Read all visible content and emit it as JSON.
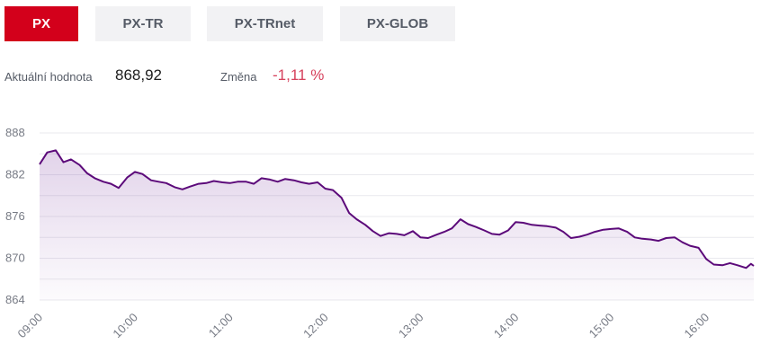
{
  "tabs": [
    {
      "label": "PX",
      "active": true
    },
    {
      "label": "PX-TR",
      "active": false
    },
    {
      "label": "PX-TRnet",
      "active": false
    },
    {
      "label": "PX-GLOB",
      "active": false
    }
  ],
  "info": {
    "current_label": "Aktuální hodnota",
    "current_value": "868,92",
    "change_label": "Změna",
    "change_value": "-1,11 %"
  },
  "colors": {
    "accent": "#d3001b",
    "line": "#5c0a7a",
    "change_negative": "#d6415c"
  },
  "chart_data": {
    "type": "area",
    "x_unit": "time (hours, 9 = 09:00)",
    "y_ticks": [
      "888",
      "882",
      "876",
      "870",
      "864"
    ],
    "ylim": [
      864,
      888
    ],
    "x_ticks": [
      "09:00",
      "10:00",
      "11:00",
      "12:00",
      "13:00",
      "14:00",
      "15:00",
      "16:00"
    ],
    "xlim": [
      9.0,
      16.5
    ],
    "grid": true,
    "series": [
      {
        "x": [
          9.0,
          9.08,
          9.17,
          9.25,
          9.33,
          9.42,
          9.5,
          9.58,
          9.67,
          9.75,
          9.83,
          9.92,
          10.0,
          10.08,
          10.17,
          10.25,
          10.33,
          10.42,
          10.5,
          10.58,
          10.67,
          10.75,
          10.83,
          10.92,
          11.0,
          11.08,
          11.17,
          11.25,
          11.33,
          11.42,
          11.5,
          11.58,
          11.67,
          11.75,
          11.83,
          11.92,
          12.0,
          12.08,
          12.17,
          12.25,
          12.33,
          12.42,
          12.5,
          12.58,
          12.67,
          12.75,
          12.83,
          12.92,
          13.0,
          13.08,
          13.17,
          13.25,
          13.33,
          13.42,
          13.5,
          13.58,
          13.67,
          13.75,
          13.83,
          13.92,
          14.0,
          14.08,
          14.17,
          14.25,
          14.33,
          14.42,
          14.5,
          14.58,
          14.67,
          14.75,
          14.83,
          14.92,
          15.0,
          15.08,
          15.17,
          15.25,
          15.33,
          15.42,
          15.5,
          15.58,
          15.67,
          15.75,
          15.83,
          15.92,
          16.0,
          16.08,
          16.17,
          16.25,
          16.33,
          16.42,
          16.47,
          16.5
        ],
        "y": [
          883.5,
          885.2,
          885.5,
          883.8,
          884.2,
          883.4,
          882.2,
          881.5,
          881.0,
          880.7,
          880.1,
          881.6,
          882.4,
          882.1,
          881.2,
          881.0,
          880.8,
          880.2,
          879.9,
          880.3,
          880.7,
          880.8,
          881.1,
          880.9,
          880.8,
          881.0,
          881.0,
          880.7,
          881.5,
          881.3,
          881.0,
          881.4,
          881.2,
          880.9,
          880.7,
          880.9,
          880.0,
          879.8,
          878.7,
          876.5,
          875.6,
          874.8,
          873.9,
          873.2,
          873.6,
          873.5,
          873.3,
          873.9,
          873.0,
          872.9,
          873.4,
          873.8,
          874.3,
          875.6,
          874.9,
          874.5,
          874.0,
          873.5,
          873.4,
          874.0,
          875.2,
          875.1,
          874.8,
          874.7,
          874.6,
          874.4,
          873.8,
          872.9,
          873.1,
          873.4,
          873.8,
          874.1,
          874.2,
          874.3,
          873.8,
          873.0,
          872.8,
          872.7,
          872.5,
          872.9,
          873.0,
          872.3,
          871.8,
          871.5,
          869.9,
          869.1,
          869.0,
          869.3,
          869.0,
          868.6,
          869.2,
          868.9
        ]
      }
    ]
  }
}
